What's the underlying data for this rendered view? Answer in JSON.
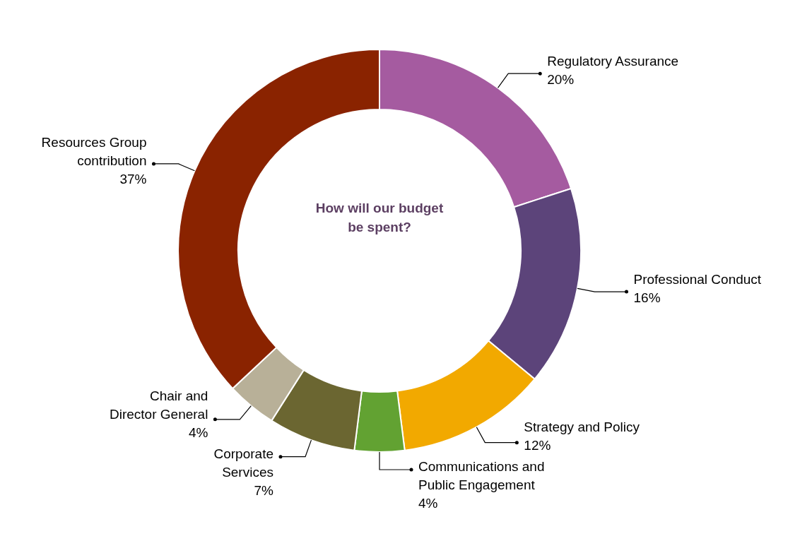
{
  "chart_data": {
    "type": "donut",
    "title": "How will our budget be spent?",
    "categories": [
      "Regulatory Assurance",
      "Professional Conduct",
      "Strategy and Policy",
      "Communications and Public Engagement",
      "Corporate Services",
      "Chair and Director General",
      "Resources Group contribution"
    ],
    "values": [
      20,
      16,
      12,
      4,
      7,
      4,
      37
    ],
    "colors": [
      "#a55ba0",
      "#5c447a",
      "#f2a900",
      "#62a232",
      "#6b6631",
      "#b8b098",
      "#8a2300"
    ],
    "value_labels": [
      "20%",
      "16%",
      "12%",
      "4%",
      "7%",
      "4%",
      "37%"
    ]
  }
}
